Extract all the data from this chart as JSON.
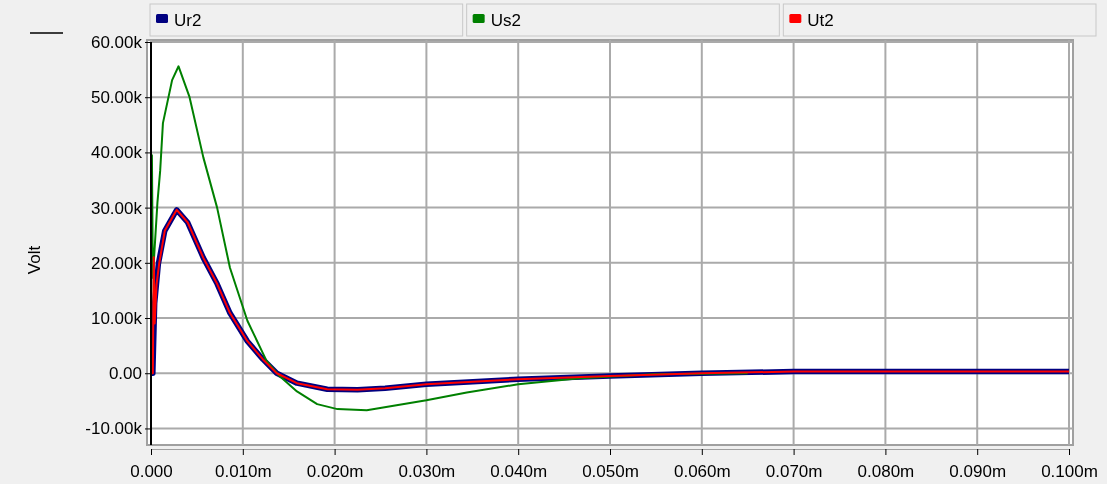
{
  "chart_data": {
    "type": "line",
    "ylabel": "Volt",
    "xlim": [
      0,
      0.1
    ],
    "ylim": [
      -13000,
      60000
    ],
    "xticks": [
      {
        "value": 0,
        "label": "0.000"
      },
      {
        "value": 0.01,
        "label": "0.010m"
      },
      {
        "value": 0.02,
        "label": "0.020m"
      },
      {
        "value": 0.03,
        "label": "0.030m"
      },
      {
        "value": 0.04,
        "label": "0.040m"
      },
      {
        "value": 0.05,
        "label": "0.050m"
      },
      {
        "value": 0.06,
        "label": "0.060m"
      },
      {
        "value": 0.07,
        "label": "0.070m"
      },
      {
        "value": 0.08,
        "label": "0.080m"
      },
      {
        "value": 0.09,
        "label": "0.090m"
      },
      {
        "value": 0.1,
        "label": "0.100m"
      }
    ],
    "yticks": [
      {
        "value": -10000,
        "label": "-10.00k"
      },
      {
        "value": 0,
        "label": "0.00"
      },
      {
        "value": 10000,
        "label": "10.00k"
      },
      {
        "value": 20000,
        "label": "20.00k"
      },
      {
        "value": 30000,
        "label": "30.00k"
      },
      {
        "value": 40000,
        "label": "40.00k"
      },
      {
        "value": 50000,
        "label": "50.00k"
      },
      {
        "value": 60000,
        "label": "60.00k"
      }
    ],
    "grid": true,
    "legend": "top",
    "line_style": "solid",
    "marker": "none",
    "series": [
      {
        "name": "Ur2",
        "color": "#000080",
        "x": [
          0,
          0.0002,
          0.0004,
          0.0008,
          0.0015,
          0.0028,
          0.004,
          0.0057,
          0.0072,
          0.0086,
          0.0105,
          0.0122,
          0.0137,
          0.0159,
          0.0192,
          0.0225,
          0.0255,
          0.03,
          0.04,
          0.05,
          0.06,
          0.07,
          0.08,
          0.09,
          0.1
        ],
        "values": [
          0,
          0,
          12700,
          19800,
          25800,
          29600,
          27300,
          20900,
          16200,
          10900,
          5800,
          2500,
          0,
          -1800,
          -2900,
          -3000,
          -2700,
          -2000,
          -1100,
          -500,
          0,
          300,
          300,
          300,
          300
        ]
      },
      {
        "name": "Us2",
        "color": "#008000",
        "x": [
          0,
          0.0001,
          0.0002,
          0.0007,
          0.001,
          0.0013,
          0.0023,
          0.003,
          0.0042,
          0.0057,
          0.0072,
          0.0086,
          0.0105,
          0.0126,
          0.014,
          0.0159,
          0.0181,
          0.0203,
          0.0235,
          0.03,
          0.0344,
          0.04,
          0.0467,
          0.0547,
          0.065
        ],
        "values": [
          0,
          39500,
          17300,
          30900,
          36700,
          45300,
          53100,
          55600,
          50000,
          39100,
          30000,
          19100,
          9500,
          2200,
          -500,
          -3300,
          -5600,
          -6500,
          -6700,
          -4900,
          -3500,
          -2000,
          -900,
          -200,
          0
        ]
      },
      {
        "name": "Ut2",
        "color": "#ff0000",
        "x": [
          0,
          0.0002,
          0.0003,
          0.0004,
          0.0006,
          0.0009,
          0.0015,
          0.0028,
          0.004,
          0.0057,
          0.0072,
          0.0086,
          0.0105,
          0.0122,
          0.0137,
          0.0159,
          0.0192,
          0.0225,
          0.0255,
          0.03,
          0.04,
          0.05,
          0.06,
          0.07,
          0.08,
          0.09,
          0.1
        ],
        "values": [
          0,
          0,
          21000,
          9000,
          16000,
          20000,
          25800,
          29600,
          27300,
          20900,
          16200,
          10900,
          5800,
          2500,
          0,
          -1800,
          -2900,
          -3000,
          -2700,
          -2000,
          -1100,
          -500,
          0,
          300,
          300,
          300,
          300
        ]
      }
    ],
    "ref_lines": [
      {
        "axis": "x",
        "value": 0,
        "color": "#000000"
      }
    ]
  }
}
